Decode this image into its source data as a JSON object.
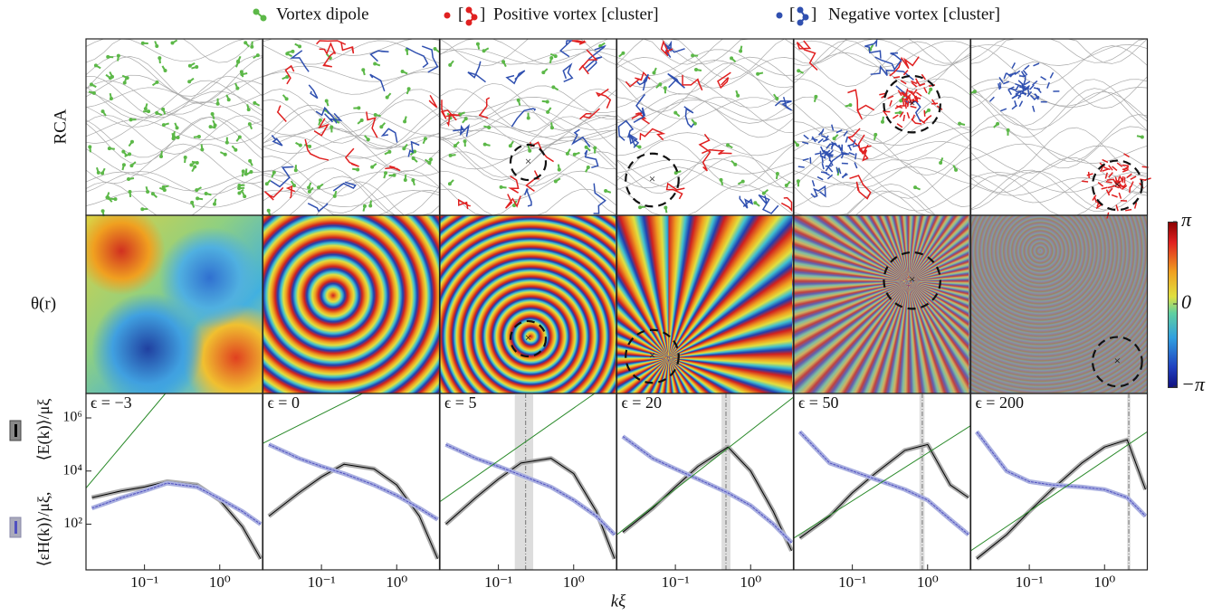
{
  "legend": [
    "Vortex dipole",
    "Positive vortex [cluster]",
    "Negative vortex [cluster]"
  ],
  "rows": [
    "RCA",
    "θ(r)"
  ],
  "ylabel": [
    "⟨εH(k)⟩/μξ,",
    "⟨E(k)⟩/μξ"
  ],
  "xlabel": "kξ",
  "colorbar": {
    "lim": [
      -3.1416,
      3.1416
    ],
    "ticks": [
      {
        "value": 3.1416,
        "label": "π"
      },
      0,
      {
        "value": -3.1416,
        "label": "−π"
      }
    ]
  },
  "chart_data": [
    {
      "type": "line",
      "title": "ϵ = −3",
      "xlog": true,
      "ylog": true,
      "xlim": [
        0.0167,
        3.7
      ],
      "ylim": [
        1.9,
        8300000
      ],
      "xticks": [
        {
          "value": 0.1,
          "label": "10⁻¹"
        },
        {
          "value": 1,
          "label": "10⁰"
        }
      ],
      "yticks": [
        {
          "value": 100,
          "label": "10²"
        },
        {
          "value": 10000,
          "label": "10⁴"
        },
        {
          "value": 1000000,
          "label": "10⁶"
        }
      ],
      "x": [
        0.02,
        0.05,
        0.1,
        0.2,
        0.5,
        1,
        2,
        3.5
      ],
      "series": [
        {
          "color": "#000000",
          "values": [
            1000,
            1800,
            2500,
            4000,
            3000,
            800,
            80,
            5
          ]
        },
        {
          "color": "#5050c0",
          "values": [
            400,
            1000,
            1800,
            3500,
            2500,
            900,
            300,
            100
          ]
        },
        {
          "color": "#2a8a2a",
          "x": [
            0.0167,
            0.19
          ],
          "values": [
            2300,
            8300000
          ]
        }
      ]
    },
    {
      "type": "line",
      "title": "ϵ = 0",
      "xlog": true,
      "ylog": true,
      "xlim": [
        0.0167,
        3.7
      ],
      "ylim": [
        1.9,
        8300000
      ],
      "xticks": [
        {
          "value": 0.1,
          "label": "10⁻¹"
        },
        {
          "value": 1,
          "label": "10⁰"
        }
      ],
      "x": [
        0.02,
        0.05,
        0.1,
        0.2,
        0.5,
        1,
        2,
        3.5
      ],
      "series": [
        {
          "color": "#000000",
          "values": [
            200,
            1500,
            6000,
            18000,
            12000,
            3000,
            200,
            5
          ]
        },
        {
          "color": "#5050c0",
          "values": [
            100000,
            30000,
            15000,
            8000,
            3000,
            1200,
            400,
            150
          ]
        },
        {
          "color": "#2a8a2a",
          "x": [
            0.0167,
            0.35
          ],
          "values": [
            110000,
            8300000
          ]
        }
      ]
    },
    {
      "type": "line",
      "title": "ϵ = 5",
      "xlog": true,
      "ylog": true,
      "xlim": [
        0.0167,
        3.7
      ],
      "ylim": [
        1.9,
        8300000
      ],
      "xticks": [
        {
          "value": 0.1,
          "label": "10⁻¹"
        },
        {
          "value": 1,
          "label": "10⁰"
        }
      ],
      "shade": [
        0.165,
        0.29
      ],
      "vline": 0.23,
      "x": [
        0.02,
        0.05,
        0.1,
        0.2,
        0.5,
        1,
        2,
        3.5
      ],
      "series": [
        {
          "color": "#000000",
          "values": [
            100,
            1000,
            5000,
            20000,
            30000,
            8000,
            300,
            5
          ]
        },
        {
          "color": "#5050c0",
          "values": [
            100000,
            30000,
            15000,
            7000,
            2500,
            800,
            200,
            40
          ]
        },
        {
          "color": "#2a8a2a",
          "x": [
            0.0167,
            1.9
          ],
          "values": [
            700,
            8300000
          ]
        }
      ]
    },
    {
      "type": "line",
      "title": "ϵ = 20",
      "xlog": true,
      "ylog": true,
      "xlim": [
        0.0167,
        3.7
      ],
      "ylim": [
        1.9,
        8300000
      ],
      "xticks": [
        {
          "value": 0.1,
          "label": "10⁻¹"
        },
        {
          "value": 1,
          "label": "10⁰"
        }
      ],
      "shade": [
        0.41,
        0.54
      ],
      "vline": 0.47,
      "x": [
        0.02,
        0.05,
        0.1,
        0.2,
        0.5,
        1,
        2,
        3.5
      ],
      "series": [
        {
          "color": "#000000",
          "values": [
            50,
            400,
            2500,
            15000,
            80000,
            10000,
            300,
            10
          ]
        },
        {
          "color": "#5050c0",
          "values": [
            200000,
            30000,
            12000,
            5000,
            1500,
            500,
            100,
            20
          ]
        },
        {
          "color": "#2a8a2a",
          "x": [
            0.0167,
            3.7
          ],
          "values": [
            40,
            6000000
          ]
        }
      ]
    },
    {
      "type": "line",
      "title": "ϵ = 50",
      "xlog": true,
      "ylog": true,
      "xlim": [
        0.0167,
        3.7
      ],
      "ylim": [
        1.9,
        8300000
      ],
      "xticks": [
        {
          "value": 0.1,
          "label": "10⁻¹"
        },
        {
          "value": 1,
          "label": "10⁰"
        }
      ],
      "shade": [
        0.78,
        0.91
      ],
      "vline": 0.85,
      "x": [
        0.02,
        0.05,
        0.1,
        0.2,
        0.5,
        1,
        2,
        3.5
      ],
      "series": [
        {
          "color": "#000000",
          "values": [
            30,
            200,
            1500,
            8000,
            60000,
            100000,
            3000,
            1000
          ]
        },
        {
          "color": "#5050c0",
          "values": [
            300000,
            20000,
            10000,
            5000,
            2000,
            800,
            150,
            40
          ]
        },
        {
          "color": "#2a8a2a",
          "x": [
            0.0167,
            3.7
          ],
          "values": [
            30,
            500000
          ]
        }
      ]
    },
    {
      "type": "line",
      "title": "ϵ = 200",
      "xlog": true,
      "ylog": true,
      "xlim": [
        0.0167,
        3.7
      ],
      "ylim": [
        1.9,
        8300000
      ],
      "xticks": [
        {
          "value": 0.1,
          "label": "10⁻¹"
        },
        {
          "value": 1,
          "label": "10⁰"
        }
      ],
      "shade": [
        2.0,
        2.2
      ],
      "vline": 2.1,
      "x": [
        0.02,
        0.05,
        0.1,
        0.2,
        0.5,
        1,
        2,
        3.5
      ],
      "series": [
        {
          "color": "#000000",
          "values": [
            5,
            40,
            300,
            2000,
            20000,
            80000,
            150000,
            2000
          ]
        },
        {
          "color": "#5050c0",
          "values": [
            300000,
            10000,
            4000,
            3000,
            2500,
            2000,
            1000,
            200
          ]
        },
        {
          "color": "#2a8a2a",
          "x": [
            0.0167,
            3.7
          ],
          "values": [
            10,
            300000
          ]
        }
      ]
    }
  ]
}
